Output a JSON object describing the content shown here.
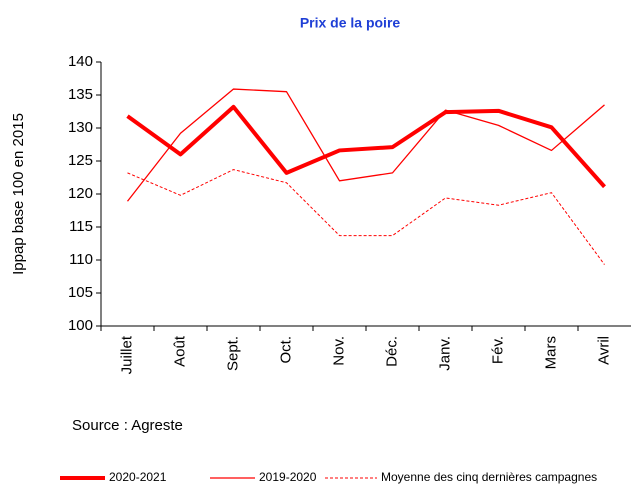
{
  "chart_data": {
    "type": "line",
    "title": "Prix de la poire",
    "y_label": "Ippap base 100 en 2015",
    "source": "Source : Agreste",
    "categories": [
      "Juillet",
      "Août",
      "Sept.",
      "Oct.",
      "Nov.",
      "Déc.",
      "Janv.",
      "Fév.",
      "Mars",
      "Avril"
    ],
    "series": [
      {
        "name": "2020-2021",
        "color": "#ff0000",
        "style": "thick",
        "values": [
          131.8,
          126,
          133.2,
          123.2,
          126.6,
          127.1,
          132.4,
          132.6,
          130.1,
          121.1
        ]
      },
      {
        "name": "2019-2020",
        "color": "#ff0000",
        "style": "thin",
        "values": [
          118.9,
          129.2,
          135.9,
          135.5,
          122,
          123.2,
          132.7,
          130.4,
          126.6,
          133.5
        ]
      },
      {
        "name": "Moyenne des cinq dernières campagnes",
        "color": "#ff0000",
        "style": "dashed",
        "values": [
          123.2,
          119.8,
          123.7,
          121.7,
          113.7,
          113.7,
          119.4,
          118.3,
          120.2,
          109.3
        ]
      }
    ],
    "ylim": [
      100,
      140
    ],
    "yticks": [
      100,
      105,
      110,
      115,
      120,
      125,
      130,
      135,
      140
    ],
    "grid": false,
    "legend": "bottom"
  }
}
